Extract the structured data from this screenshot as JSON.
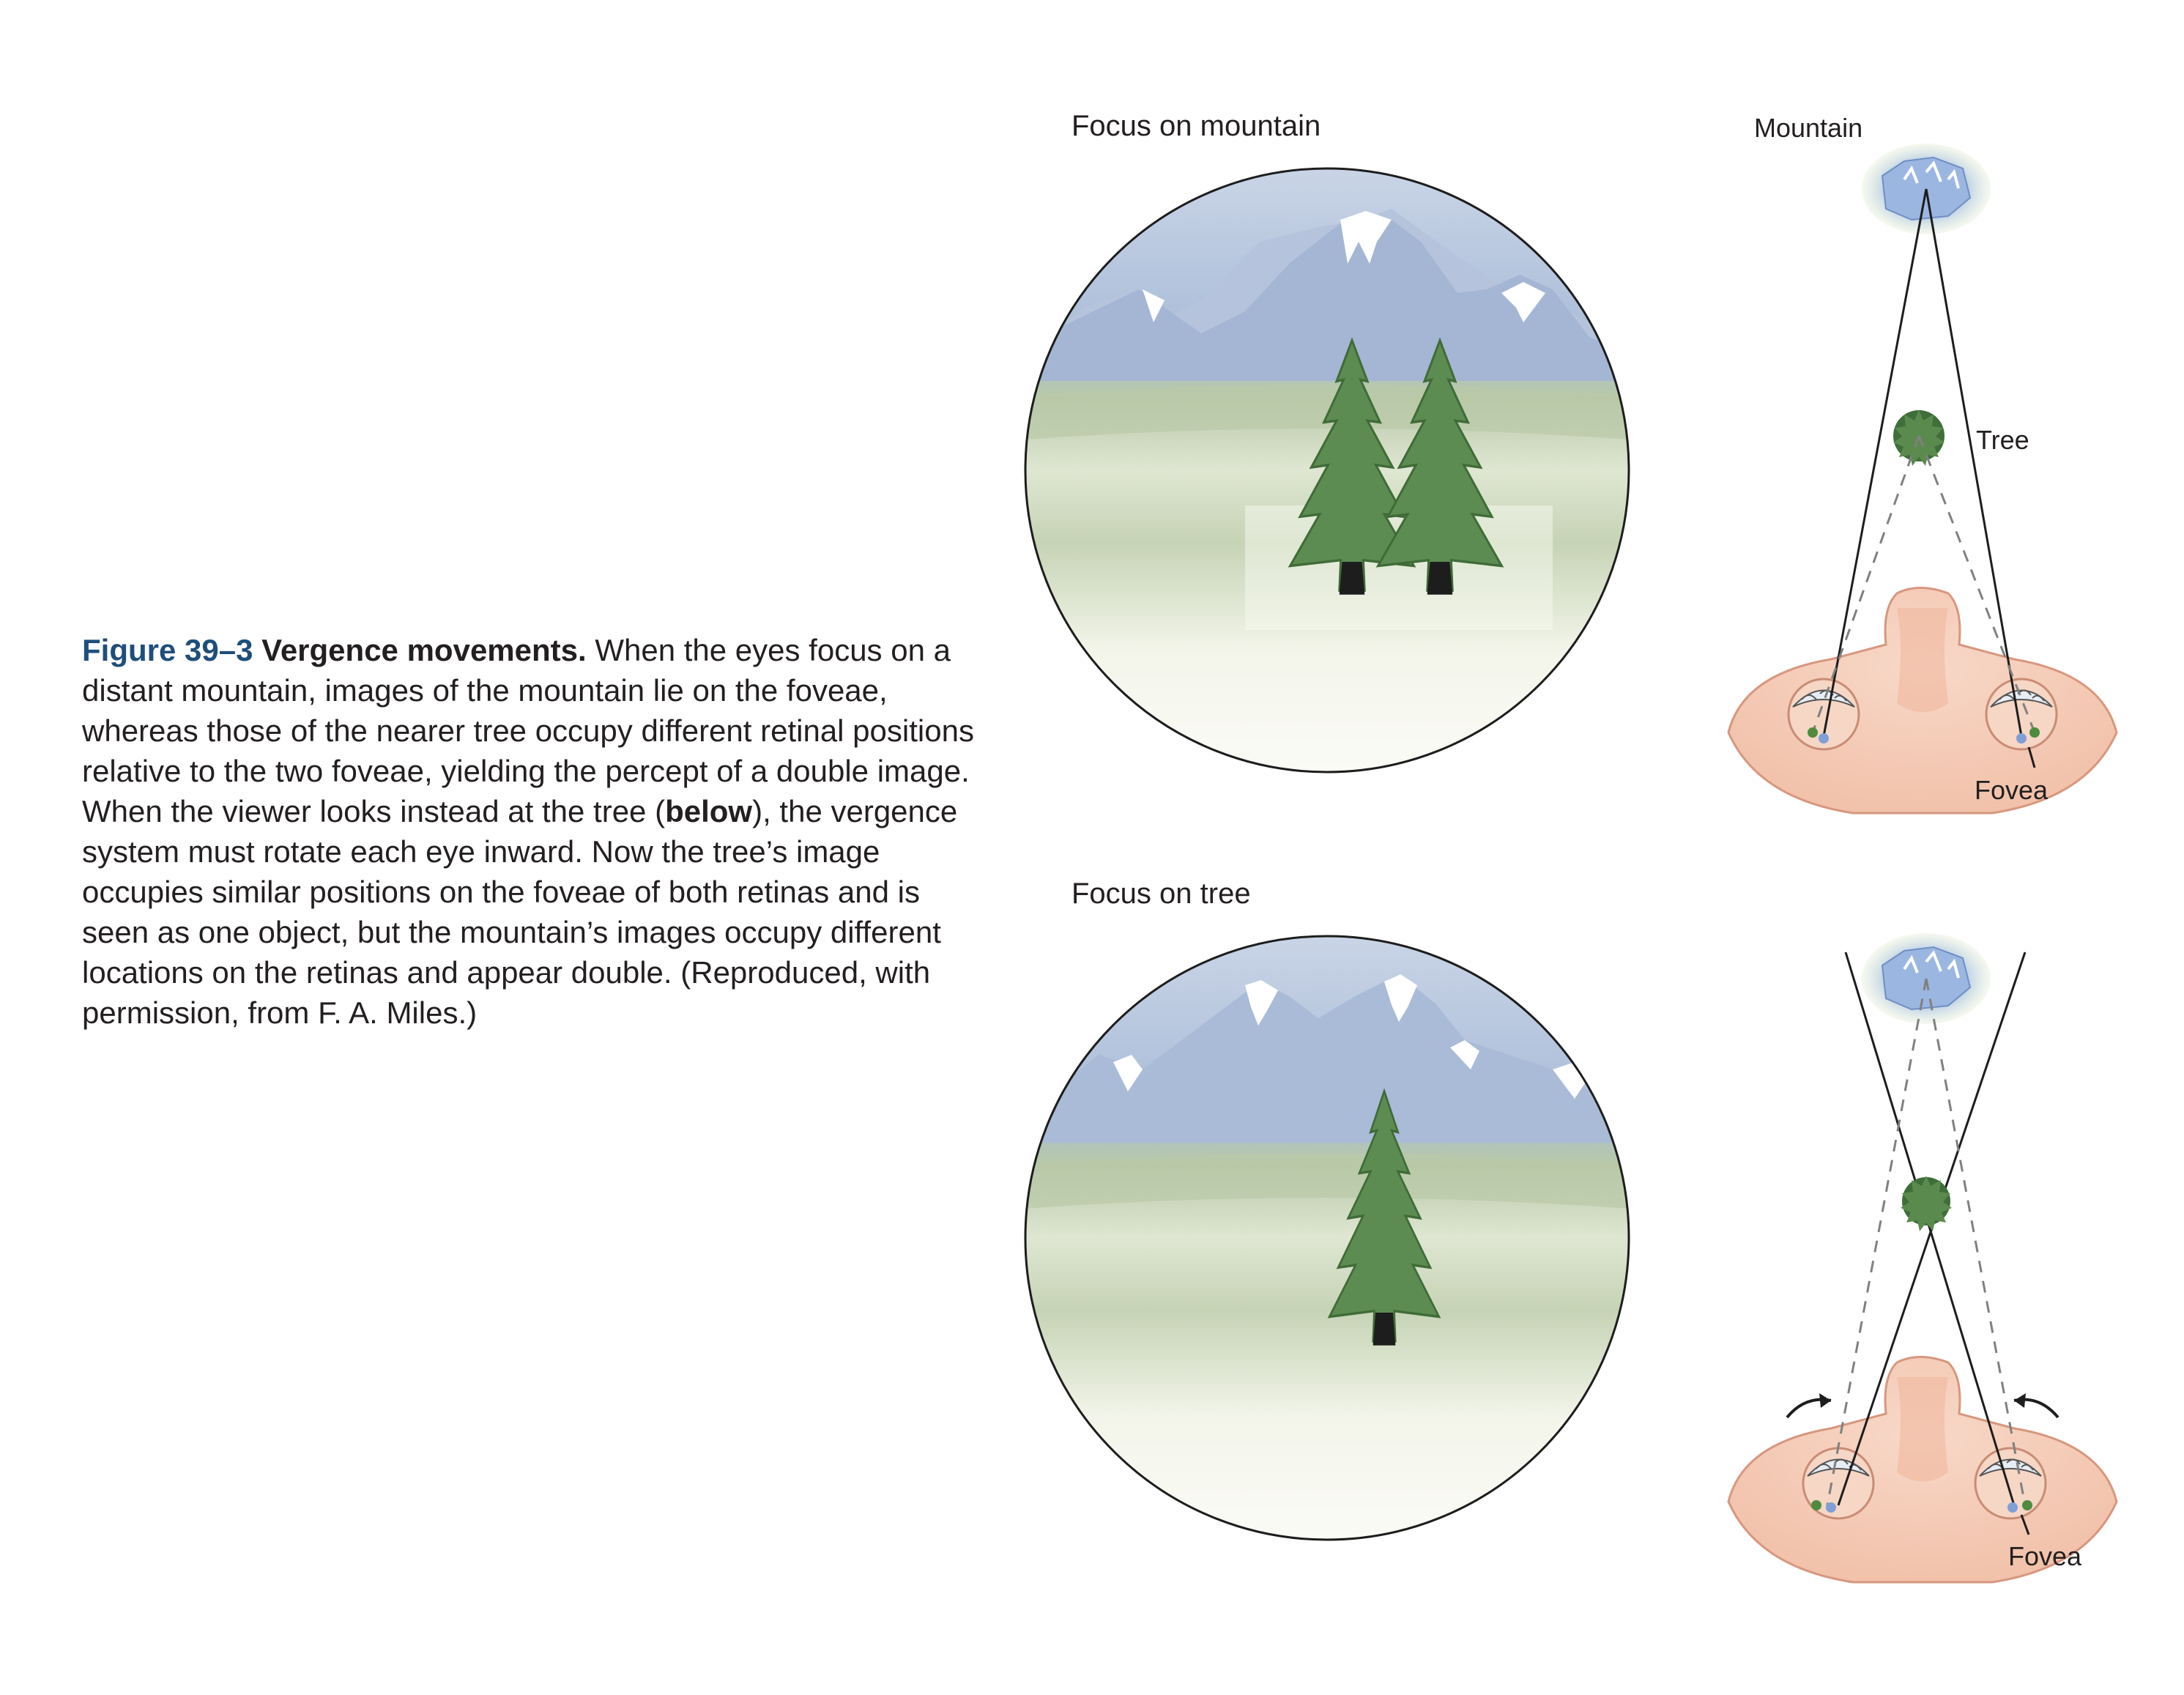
{
  "caption": {
    "figure_number": "Figure 39–3",
    "title": "Vergence movements.",
    "text_part1": " When the eyes focus on a distant mountain, images of the mountain lie on the foveae, whereas those of the nearer tree occupy different retinal positions relative to the two foveae, yielding the percept of a double image. When the viewer looks instead at the tree (",
    "emphasis": "below",
    "text_part2": "), the vergence system must rotate each eye inward. Now the tree’s image occupies similar positions on the foveae of both retinas and is seen as one object, but the mountain’s images occupy different locations on the retinas and appear double. (Reproduced, with permission, from F. A. Miles.)"
  },
  "top_panel": {
    "scene_label": "Focus on mountain",
    "mountain_label": "Mountain",
    "tree_label": "Tree",
    "fovea_label": "Fovea"
  },
  "bottom_panel": {
    "scene_label": "Focus on tree",
    "fovea_label": "Fovea"
  },
  "colors": {
    "sky": "#b3c4dc",
    "mountain": "#a7b9d6",
    "snow": "#ffffff",
    "meadow": "#b9c9a6",
    "ground": "#f7f8ef",
    "tree": "#5a8a4f",
    "trunk": "#222222",
    "face": "#f4c9b4",
    "face_outline": "#d7977f",
    "fovea_blue": "#7f9fd6",
    "fovea_green": "#4f8a3f"
  }
}
